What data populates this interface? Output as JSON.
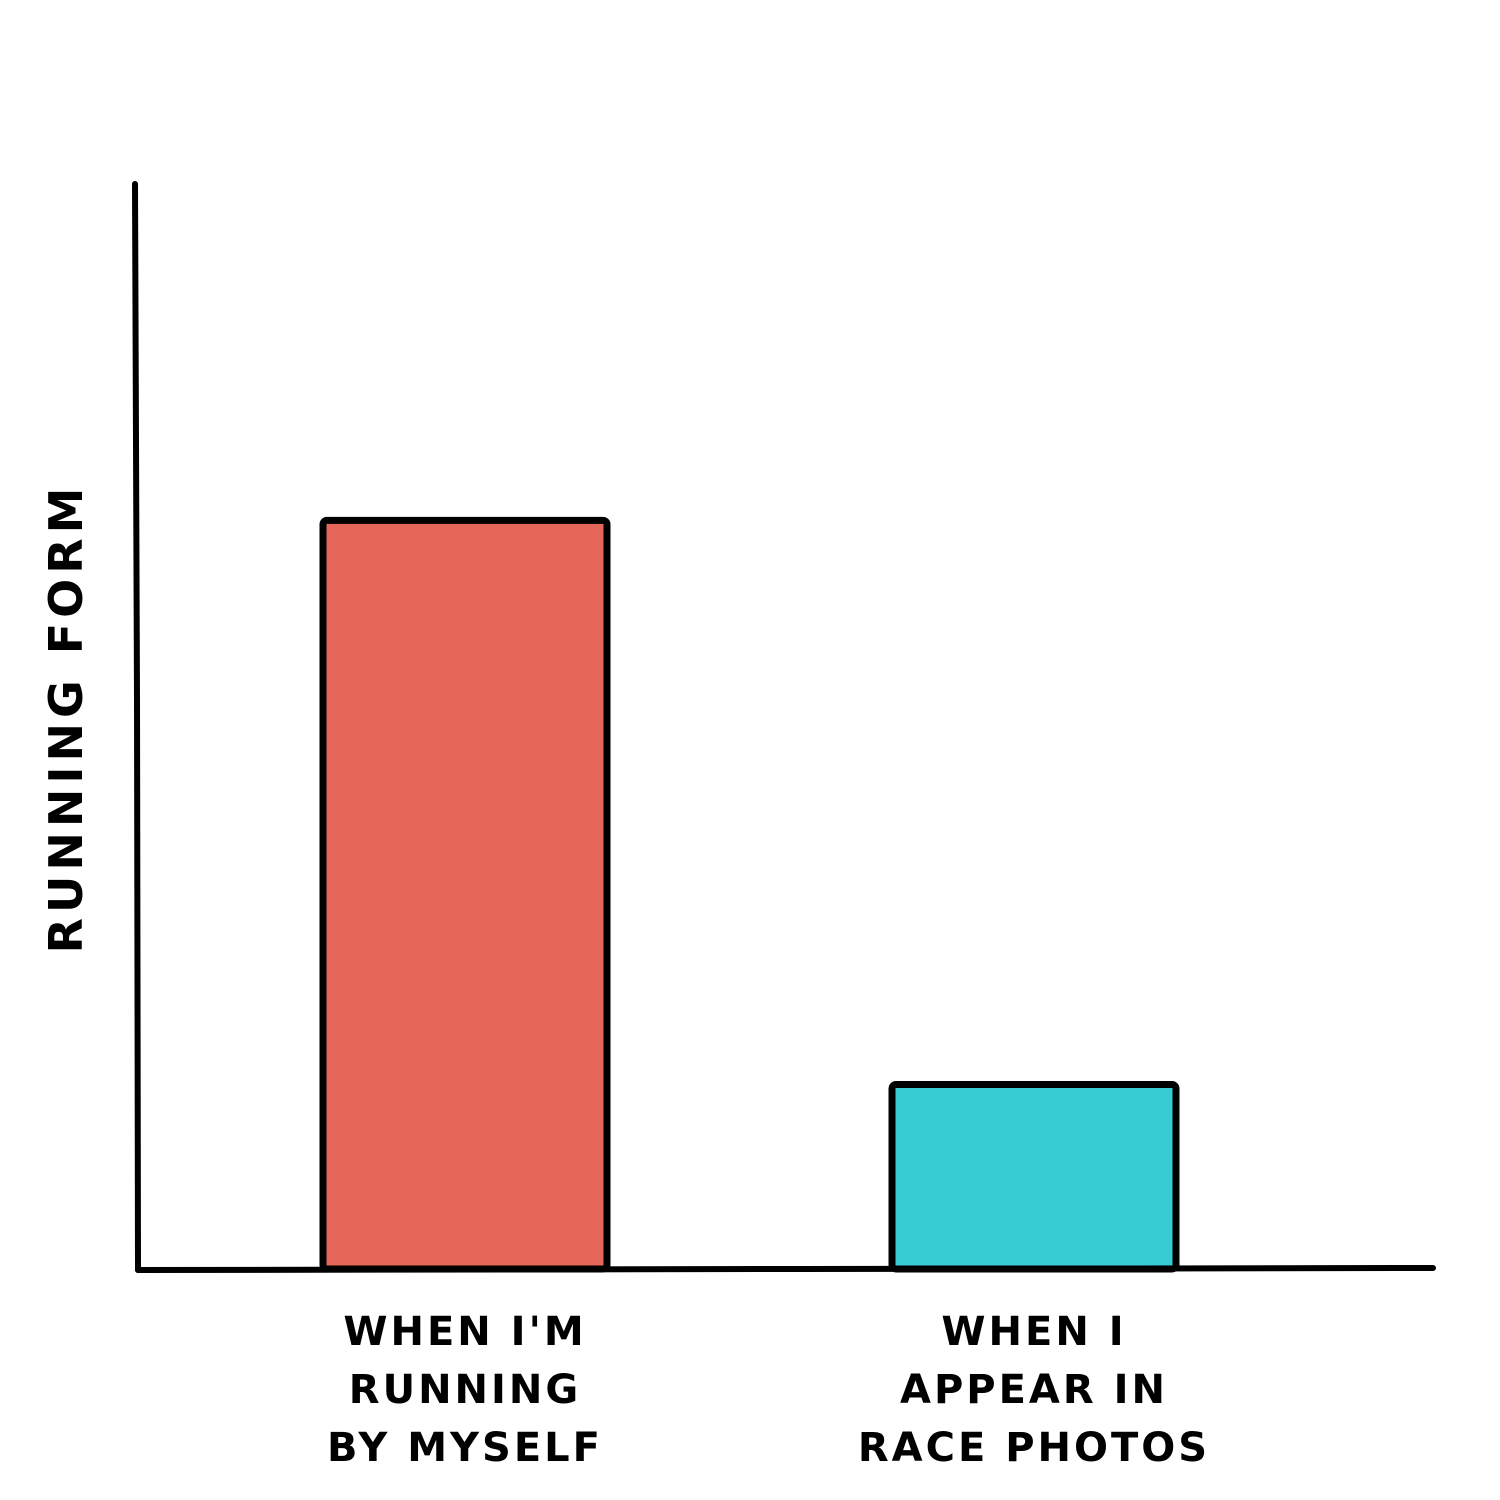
{
  "chart_data": {
    "type": "bar",
    "title": "",
    "xlabel": "",
    "ylabel": "RUNNING FORM",
    "categories": [
      "WHEN I'M RUNNING BY MYSELF",
      "WHEN I APPEAR IN RACE PHOTOS"
    ],
    "category_lines": [
      [
        "WHEN I'M",
        "RUNNING",
        "BY MYSELF"
      ],
      [
        "WHEN I",
        "APPEAR IN",
        "RACE PHOTOS"
      ]
    ],
    "values": [
      69,
      17
    ],
    "ylim": [
      0,
      100
    ],
    "colors": [
      "#e4675a",
      "#37cbd3"
    ],
    "grid": false,
    "legend": "none"
  }
}
